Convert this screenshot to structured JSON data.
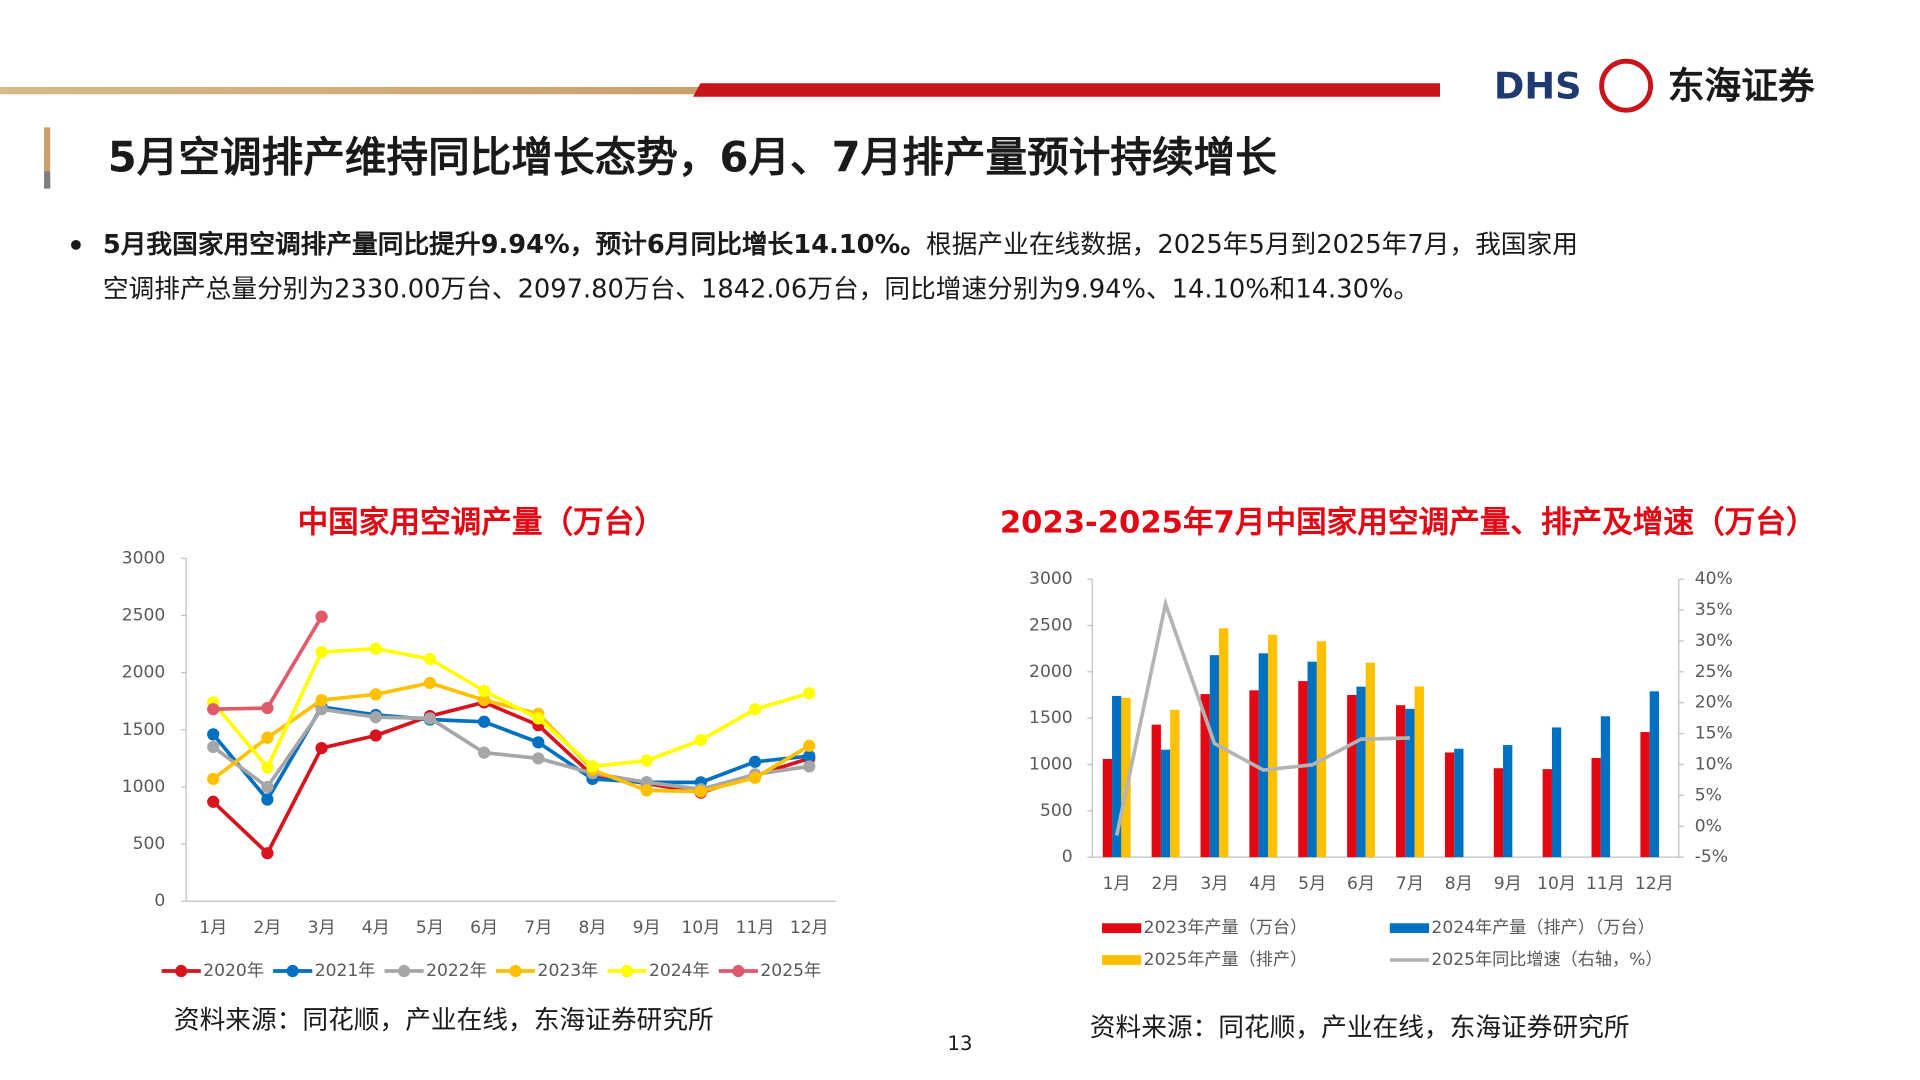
{
  "header": {
    "logo": "DHS",
    "company": "东海证券",
    "title": "5月空调排产维持同比增长态势，6月、7月排产量预计持续增长"
  },
  "bullet": {
    "bold": "5月我国家用空调排产量同比提升9.94%，预计6月同比增长14.10%。",
    "text": [
      "根据产业在线数据，2025年5月到2025年7月，我国家用",
      "空调排产总量分别为2330.00万台、2097.80万台、1842.06万台，同比增速分别为9.94%、14.10%和14.30%。"
    ]
  },
  "page_number": "13",
  "chart_data": [
    {
      "type": "line",
      "title": "中国家用空调产量（万台）",
      "source": "资料来源：同花顺，产业在线，东海证券研究所",
      "categories": [
        "1月",
        "2月",
        "3月",
        "4月",
        "5月",
        "6月",
        "7月",
        "8月",
        "9月",
        "10月",
        "11月",
        "12月"
      ],
      "ylim": [
        0,
        3000
      ],
      "yticks": [
        0,
        500,
        1000,
        1500,
        2000,
        2500,
        3000
      ],
      "legend": "bottom",
      "series": [
        {
          "name": "2020年",
          "color": "#d7141e",
          "values": [
            870,
            420,
            1340,
            1450,
            1620,
            1740,
            1540,
            1100,
            1030,
            950,
            1100,
            1250
          ]
        },
        {
          "name": "2021年",
          "color": "#0070c0",
          "values": [
            1460,
            890,
            1700,
            1630,
            1590,
            1570,
            1390,
            1070,
            1040,
            1040,
            1220,
            1270
          ]
        },
        {
          "name": "2022年",
          "color": "#a6a6a6",
          "values": [
            1350,
            1000,
            1680,
            1610,
            1600,
            1300,
            1250,
            1120,
            1040,
            980,
            1110,
            1180
          ]
        },
        {
          "name": "2023年",
          "color": "#ffc000",
          "values": [
            1070,
            1430,
            1760,
            1810,
            1910,
            1760,
            1640,
            1150,
            970,
            960,
            1080,
            1360
          ]
        },
        {
          "name": "2024年",
          "color": "#ffff00",
          "values": [
            1740,
            1170,
            2180,
            2210,
            2120,
            1840,
            1600,
            1180,
            1230,
            1410,
            1680,
            1820
          ]
        },
        {
          "name": "2025年",
          "color": "#e05a6c",
          "values": [
            1680,
            1690,
            2490,
            null,
            null,
            null,
            null,
            null,
            null,
            null,
            null,
            null
          ]
        }
      ]
    },
    {
      "type": "combo",
      "title": "2023-2025年7月中国家用空调产量、排产及增速（万台）",
      "source": "资料来源：同花顺，产业在线，东海证券研究所",
      "categories": [
        "1月",
        "2月",
        "3月",
        "4月",
        "5月",
        "6月",
        "7月",
        "8月",
        "9月",
        "10月",
        "11月",
        "12月"
      ],
      "ylim": [
        0,
        3000
      ],
      "yticks": [
        0,
        500,
        1000,
        1500,
        2000,
        2500,
        3000
      ],
      "y2lim": [
        -5,
        40
      ],
      "y2ticks": [
        {
          "value": -5,
          "label": "-5%"
        },
        {
          "value": 0,
          "label": "0%"
        },
        {
          "value": 5,
          "label": "5%"
        },
        {
          "value": 10,
          "label": "10%"
        },
        {
          "value": 15,
          "label": "15%"
        },
        {
          "value": 20,
          "label": "20%"
        },
        {
          "value": 25,
          "label": "25%"
        },
        {
          "value": 30,
          "label": "30%"
        },
        {
          "value": 35,
          "label": "35%"
        },
        {
          "value": 40,
          "label": "40%"
        }
      ],
      "legend": "bottom",
      "series": [
        {
          "name": "2023年产量（万台）",
          "type": "bar",
          "color": "#e30613",
          "values": [
            1060,
            1430,
            1760,
            1800,
            1900,
            1750,
            1640,
            1130,
            960,
            950,
            1070,
            1350
          ]
        },
        {
          "name": "2024年产量（排产）（万台）",
          "type": "bar",
          "color": "#0070c0",
          "values": [
            1740,
            1160,
            2180,
            2200,
            2110,
            1840,
            1600,
            1170,
            1210,
            1400,
            1520,
            1790
          ]
        },
        {
          "name": "2025年产量（排产）",
          "type": "bar",
          "color": "#ffc000",
          "values": [
            1720,
            1590,
            2470,
            2400,
            2330,
            2098,
            1842,
            null,
            null,
            null,
            null,
            null
          ]
        },
        {
          "name": "2025年同比增速（右轴，%）",
          "type": "line",
          "axis": "y2",
          "color": "#b4b4b4",
          "values": [
            -1.5,
            36,
            13.4,
            9.1,
            9.94,
            14.1,
            14.3,
            null,
            null,
            null,
            null,
            null
          ]
        }
      ]
    }
  ]
}
